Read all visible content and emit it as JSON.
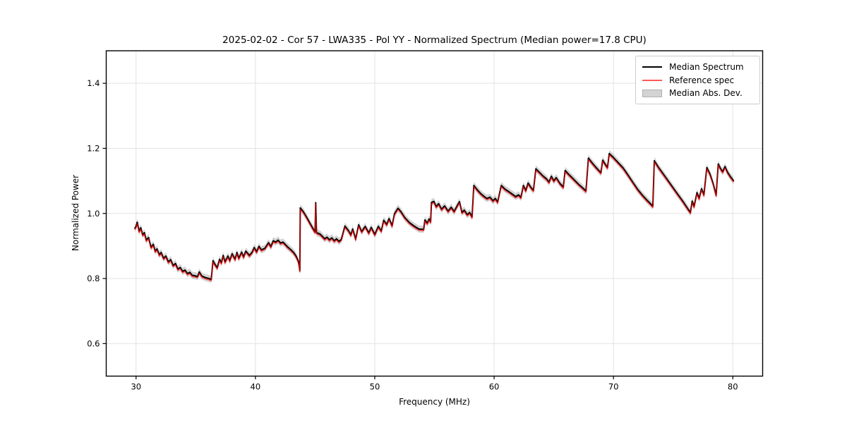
{
  "chart_data": {
    "type": "line",
    "title": "2025-02-02 - Cor 57 - LWA335 - Pol YY - Normalized Spectrum (Median power=17.8 CPU)",
    "xlabel": "Frequency (MHz)",
    "ylabel": "Normalized Power",
    "xlim": [
      27.5,
      82.5
    ],
    "ylim": [
      0.5,
      1.5
    ],
    "xticks": [
      30,
      40,
      50,
      60,
      70,
      80
    ],
    "yticks": [
      0.6,
      0.8,
      1.0,
      1.2,
      1.4
    ],
    "grid": true,
    "legend": {
      "position": "upper right",
      "entries": [
        {
          "label": "Median Spectrum",
          "type": "line",
          "color": "#000000"
        },
        {
          "label": "Reference spec",
          "type": "line",
          "color": "#ff6a6a"
        },
        {
          "label": "Median Abs. Dev.",
          "type": "patch",
          "color": "#c9c9c9"
        }
      ]
    },
    "colors": {
      "median_line": "#000000",
      "reference_line": "#ff0000",
      "reference_opacity": 0.7,
      "mad_band": "#808080",
      "mad_band_opacity": 0.35,
      "grid": "#e3e3e3",
      "frame": "#000000"
    },
    "mad_halfwidth": 0.011,
    "reference_offset": -0.004,
    "series": [
      {
        "name": "Median Spectrum"
      },
      {
        "name": "Reference spec"
      },
      {
        "name": "Median Abs. Dev."
      }
    ],
    "points": [
      [
        29.9,
        0.955
      ],
      [
        30.0,
        0.96
      ],
      [
        30.1,
        0.973
      ],
      [
        30.25,
        0.945
      ],
      [
        30.4,
        0.956
      ],
      [
        30.55,
        0.934
      ],
      [
        30.7,
        0.941
      ],
      [
        30.85,
        0.918
      ],
      [
        31.05,
        0.926
      ],
      [
        31.25,
        0.896
      ],
      [
        31.45,
        0.905
      ],
      [
        31.6,
        0.884
      ],
      [
        31.75,
        0.891
      ],
      [
        31.95,
        0.873
      ],
      [
        32.1,
        0.88
      ],
      [
        32.3,
        0.862
      ],
      [
        32.5,
        0.869
      ],
      [
        32.7,
        0.851
      ],
      [
        32.9,
        0.858
      ],
      [
        33.1,
        0.84
      ],
      [
        33.3,
        0.846
      ],
      [
        33.5,
        0.829
      ],
      [
        33.7,
        0.834
      ],
      [
        33.9,
        0.822
      ],
      [
        34.1,
        0.826
      ],
      [
        34.3,
        0.815
      ],
      [
        34.5,
        0.819
      ],
      [
        34.7,
        0.81
      ],
      [
        35.0,
        0.808
      ],
      [
        35.15,
        0.806
      ],
      [
        35.3,
        0.82
      ],
      [
        35.5,
        0.808
      ],
      [
        35.8,
        0.803
      ],
      [
        36.1,
        0.8
      ],
      [
        36.3,
        0.797
      ],
      [
        36.45,
        0.855
      ],
      [
        36.6,
        0.844
      ],
      [
        36.8,
        0.833
      ],
      [
        37.0,
        0.859
      ],
      [
        37.15,
        0.848
      ],
      [
        37.3,
        0.871
      ],
      [
        37.45,
        0.851
      ],
      [
        37.7,
        0.869
      ],
      [
        37.85,
        0.855
      ],
      [
        38.05,
        0.876
      ],
      [
        38.3,
        0.859
      ],
      [
        38.45,
        0.88
      ],
      [
        38.6,
        0.862
      ],
      [
        38.85,
        0.881
      ],
      [
        39.0,
        0.866
      ],
      [
        39.2,
        0.884
      ],
      [
        39.5,
        0.871
      ],
      [
        39.75,
        0.882
      ],
      [
        39.9,
        0.895
      ],
      [
        40.1,
        0.882
      ],
      [
        40.3,
        0.899
      ],
      [
        40.5,
        0.888
      ],
      [
        40.8,
        0.893
      ],
      [
        41.1,
        0.91
      ],
      [
        41.3,
        0.898
      ],
      [
        41.5,
        0.916
      ],
      [
        41.7,
        0.912
      ],
      [
        41.9,
        0.918
      ],
      [
        42.1,
        0.909
      ],
      [
        42.3,
        0.912
      ],
      [
        42.5,
        0.905
      ],
      [
        42.7,
        0.897
      ],
      [
        42.9,
        0.891
      ],
      [
        43.2,
        0.88
      ],
      [
        43.4,
        0.869
      ],
      [
        43.6,
        0.853
      ],
      [
        43.68,
        0.835
      ],
      [
        43.72,
        0.824
      ],
      [
        43.76,
        1.017
      ],
      [
        44.0,
        1.006
      ],
      [
        44.2,
        0.994
      ],
      [
        44.4,
        0.981
      ],
      [
        44.6,
        0.968
      ],
      [
        44.8,
        0.955
      ],
      [
        45.0,
        0.943
      ],
      [
        45.05,
        1.033
      ],
      [
        45.12,
        0.941
      ],
      [
        45.4,
        0.937
      ],
      [
        45.6,
        0.93
      ],
      [
        45.8,
        0.922
      ],
      [
        46.0,
        0.927
      ],
      [
        46.2,
        0.919
      ],
      [
        46.4,
        0.925
      ],
      [
        46.6,
        0.916
      ],
      [
        46.8,
        0.922
      ],
      [
        47.0,
        0.914
      ],
      [
        47.2,
        0.92
      ],
      [
        47.5,
        0.961
      ],
      [
        47.8,
        0.947
      ],
      [
        48.0,
        0.934
      ],
      [
        48.15,
        0.952
      ],
      [
        48.4,
        0.921
      ],
      [
        48.65,
        0.965
      ],
      [
        48.9,
        0.944
      ],
      [
        49.2,
        0.96
      ],
      [
        49.5,
        0.94
      ],
      [
        49.7,
        0.957
      ],
      [
        50.0,
        0.935
      ],
      [
        50.3,
        0.96
      ],
      [
        50.55,
        0.946
      ],
      [
        50.75,
        0.979
      ],
      [
        51.0,
        0.966
      ],
      [
        51.2,
        0.984
      ],
      [
        51.45,
        0.962
      ],
      [
        51.65,
        0.999
      ],
      [
        51.95,
        1.016
      ],
      [
        52.2,
        1.005
      ],
      [
        52.5,
        0.988
      ],
      [
        52.9,
        0.972
      ],
      [
        53.3,
        0.961
      ],
      [
        53.7,
        0.952
      ],
      [
        54.1,
        0.951
      ],
      [
        54.2,
        0.98
      ],
      [
        54.4,
        0.97
      ],
      [
        54.55,
        0.983
      ],
      [
        54.68,
        0.974
      ],
      [
        54.75,
        1.034
      ],
      [
        54.95,
        1.037
      ],
      [
        55.15,
        1.021
      ],
      [
        55.35,
        1.03
      ],
      [
        55.6,
        1.013
      ],
      [
        55.85,
        1.023
      ],
      [
        56.15,
        1.007
      ],
      [
        56.4,
        1.019
      ],
      [
        56.65,
        1.006
      ],
      [
        56.9,
        1.023
      ],
      [
        57.1,
        1.036
      ],
      [
        57.3,
        1.003
      ],
      [
        57.5,
        1.01
      ],
      [
        57.75,
        0.996
      ],
      [
        57.95,
        1.003
      ],
      [
        58.15,
        0.989
      ],
      [
        58.3,
        1.086
      ],
      [
        58.6,
        1.072
      ],
      [
        58.85,
        1.062
      ],
      [
        59.1,
        1.054
      ],
      [
        59.4,
        1.046
      ],
      [
        59.65,
        1.05
      ],
      [
        59.9,
        1.039
      ],
      [
        60.1,
        1.046
      ],
      [
        60.3,
        1.035
      ],
      [
        60.6,
        1.086
      ],
      [
        60.9,
        1.075
      ],
      [
        61.2,
        1.068
      ],
      [
        61.5,
        1.06
      ],
      [
        61.8,
        1.052
      ],
      [
        62.05,
        1.057
      ],
      [
        62.25,
        1.049
      ],
      [
        62.45,
        1.086
      ],
      [
        62.65,
        1.07
      ],
      [
        62.85,
        1.093
      ],
      [
        63.1,
        1.079
      ],
      [
        63.3,
        1.071
      ],
      [
        63.5,
        1.137
      ],
      [
        63.8,
        1.126
      ],
      [
        64.1,
        1.115
      ],
      [
        64.4,
        1.106
      ],
      [
        64.6,
        1.096
      ],
      [
        64.8,
        1.114
      ],
      [
        65.0,
        1.1
      ],
      [
        65.2,
        1.11
      ],
      [
        65.5,
        1.093
      ],
      [
        65.8,
        1.081
      ],
      [
        65.95,
        1.132
      ],
      [
        66.2,
        1.122
      ],
      [
        66.5,
        1.111
      ],
      [
        66.8,
        1.1
      ],
      [
        67.1,
        1.089
      ],
      [
        67.4,
        1.079
      ],
      [
        67.7,
        1.069
      ],
      [
        67.9,
        1.17
      ],
      [
        68.2,
        1.156
      ],
      [
        68.5,
        1.143
      ],
      [
        68.8,
        1.131
      ],
      [
        68.95,
        1.125
      ],
      [
        69.1,
        1.164
      ],
      [
        69.35,
        1.149
      ],
      [
        69.5,
        1.141
      ],
      [
        69.65,
        1.184
      ],
      [
        70.0,
        1.172
      ],
      [
        70.4,
        1.156
      ],
      [
        70.8,
        1.14
      ],
      [
        71.2,
        1.119
      ],
      [
        71.6,
        1.097
      ],
      [
        72.0,
        1.075
      ],
      [
        72.4,
        1.057
      ],
      [
        72.8,
        1.041
      ],
      [
        73.1,
        1.03
      ],
      [
        73.3,
        1.022
      ],
      [
        73.42,
        1.162
      ],
      [
        73.8,
        1.14
      ],
      [
        74.3,
        1.115
      ],
      [
        74.8,
        1.089
      ],
      [
        75.3,
        1.063
      ],
      [
        75.8,
        1.038
      ],
      [
        76.2,
        1.016
      ],
      [
        76.45,
        1.003
      ],
      [
        76.6,
        1.038
      ],
      [
        76.75,
        1.021
      ],
      [
        77.0,
        1.064
      ],
      [
        77.18,
        1.046
      ],
      [
        77.38,
        1.076
      ],
      [
        77.58,
        1.057
      ],
      [
        77.82,
        1.141
      ],
      [
        78.1,
        1.12
      ],
      [
        78.35,
        1.092
      ],
      [
        78.6,
        1.056
      ],
      [
        78.78,
        1.152
      ],
      [
        78.95,
        1.139
      ],
      [
        79.15,
        1.128
      ],
      [
        79.35,
        1.144
      ],
      [
        79.55,
        1.127
      ],
      [
        79.8,
        1.113
      ],
      [
        80.05,
        1.101
      ]
    ]
  }
}
